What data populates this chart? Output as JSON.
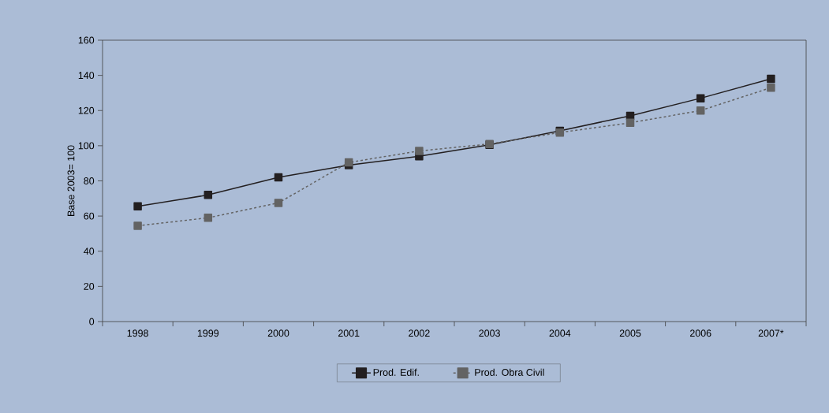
{
  "chart_data": {
    "type": "line",
    "ylabel": "Base 2003= 100",
    "categories": [
      "1998",
      "1999",
      "2000",
      "2001",
      "2002",
      "2003",
      "2004",
      "2005",
      "2006",
      "2007*"
    ],
    "series": [
      {
        "name": "Prod. Edif.",
        "color": "#231f20",
        "line_style": "solid",
        "values": [
          65.5,
          72,
          82,
          89,
          94,
          100.5,
          108.5,
          117,
          127,
          138
        ]
      },
      {
        "name": "Prod. Obra Civil",
        "color": "#636363",
        "line_style": "dashed",
        "values": [
          54.5,
          59,
          67.5,
          90.5,
          97,
          101,
          107.5,
          113,
          120,
          133
        ]
      }
    ],
    "ylim": [
      0,
      160
    ],
    "yticks": [
      0,
      20,
      40,
      60,
      80,
      100,
      120,
      140,
      160
    ],
    "marker": "square",
    "legend": "bottom"
  }
}
